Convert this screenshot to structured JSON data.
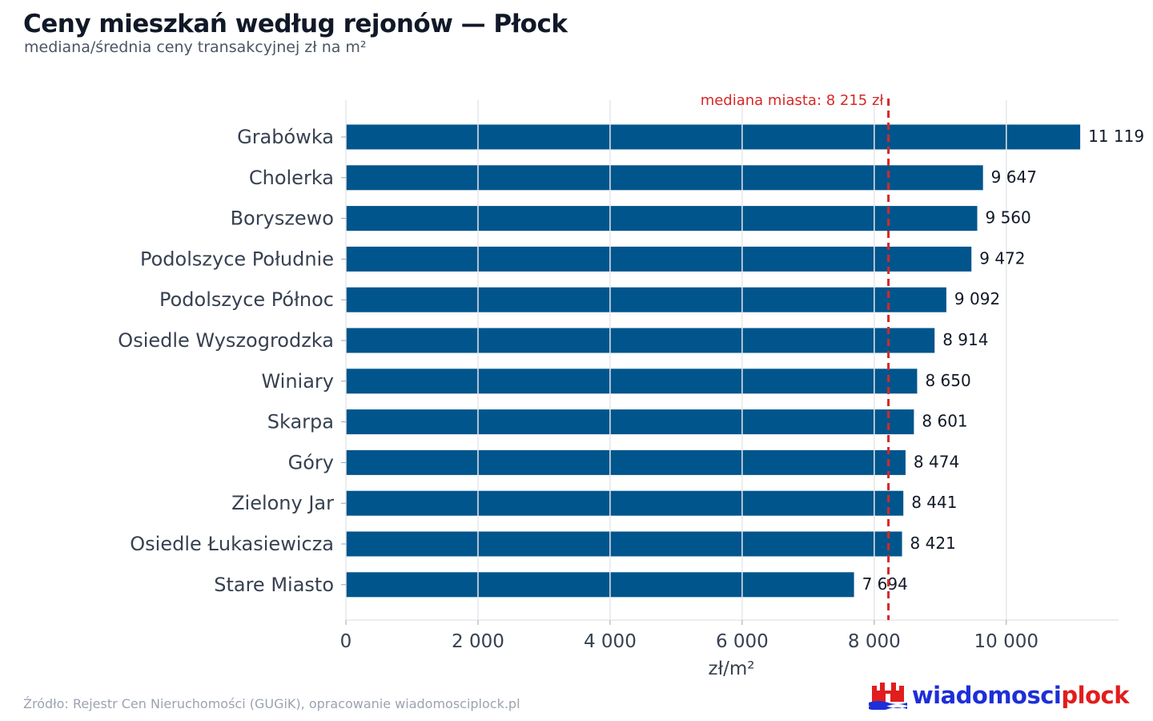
{
  "header": {
    "title": "Ceny mieszkań według rejonów — Płock",
    "subtitle": "mediana/średnia ceny transakcyjnej zł na m²"
  },
  "chart_data": {
    "type": "bar",
    "orientation": "horizontal",
    "categories": [
      "Grabówka",
      "Cholerka",
      "Boryszewo",
      "Podolszyce Południe",
      "Podolszyce Północ",
      "Osiedle Wyszogrodzka",
      "Winiary",
      "Skarpa",
      "Góry",
      "Zielony Jar",
      "Osiedle Łukasiewicza",
      "Stare Miasto"
    ],
    "values": [
      11119,
      9647,
      9560,
      9472,
      9092,
      8914,
      8650,
      8601,
      8474,
      8441,
      8421,
      7694
    ],
    "value_labels": [
      "11 119",
      "9 647",
      "9 560",
      "9 472",
      "9 092",
      "8 914",
      "8 650",
      "8 601",
      "8 474",
      "8 441",
      "8 421",
      "7 694"
    ],
    "xlabel": "zł/m²",
    "xlim": [
      0,
      11700
    ],
    "xticks": [
      0,
      2000,
      4000,
      6000,
      8000,
      10000
    ],
    "xtick_labels": [
      "0",
      "2 000",
      "4 000",
      "6 000",
      "8 000",
      "10 000"
    ],
    "grid": true,
    "reference_line": {
      "value": 8215,
      "label": "mediana miasta: 8 215 zł",
      "style": "dashed"
    },
    "colors": {
      "bar": "#00558c",
      "reference": "#d62828",
      "grid": "#e5e7eb"
    }
  },
  "footer": {
    "source": "Źródło: Rejestr Cen Nieruchomości (GUGiK), opracowanie wiadomosciplock.pl",
    "logo_part1": "wiadomosci",
    "logo_part2": "plock"
  }
}
